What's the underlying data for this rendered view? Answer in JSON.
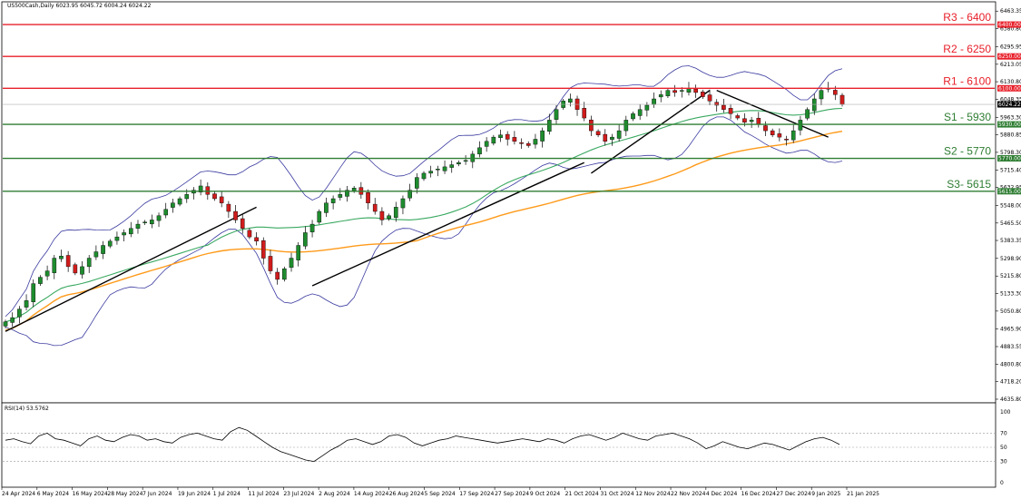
{
  "header": {
    "symbol_line": "US500Cash,Daily  6023.95 6045.72 6004.24 6024.22"
  },
  "colors": {
    "resistance": "#e8202a",
    "support": "#2e7d32",
    "candle_up": "#1e8c2e",
    "candle_down": "#d01c1c",
    "bollinger": "#3a3aa0",
    "ma_green": "#39a860",
    "ma_orange": "#ff9a1a",
    "trendline": "#000000",
    "rsi_line": "#000000"
  },
  "levels": [
    {
      "name": "R3",
      "label": "R3 - 6400",
      "price": 6400,
      "tag": "6400.00",
      "kind": "resistance"
    },
    {
      "name": "R2",
      "label": "R2 - 6250",
      "price": 6250,
      "tag": "6250.00",
      "kind": "resistance"
    },
    {
      "name": "R1",
      "label": "R1 - 6100",
      "price": 6100,
      "tag": "6100.00",
      "kind": "resistance"
    },
    {
      "name": "S1",
      "label": "S1 - 5930",
      "price": 5930,
      "tag": "5930.00",
      "kind": "support"
    },
    {
      "name": "S2",
      "label": "S2 - 5770",
      "price": 5770,
      "tag": "5770.00",
      "kind": "support"
    },
    {
      "name": "S3",
      "label": "S3- 5615",
      "price": 5615,
      "tag": "5615.00",
      "kind": "support"
    }
  ],
  "current_price_tag": "6024.22",
  "rsi": {
    "label": "RSI(14) 53.5762",
    "levels": [
      70,
      50,
      30
    ],
    "tick_labels": [
      "100",
      "70",
      "50",
      "30",
      "0"
    ]
  },
  "chart_data": {
    "type": "candlestick",
    "title": "US500Cash,Daily",
    "y_ticks": [
      "6463.35",
      "6380.80",
      "6295.95",
      "6213.05",
      "6130.80",
      "6048.35",
      "5963.30",
      "5880.85",
      "5798.30",
      "5715.40",
      "5632.95",
      "5548.00",
      "5465.50",
      "5383.35",
      "5298.90",
      "5215.80",
      "5133.30",
      "5050.80",
      "4965.90",
      "4883.55",
      "4800.80",
      "4718.20",
      "4635.80"
    ],
    "ylim": [
      4635.8,
      6490
    ],
    "x_labels": [
      "24 Apr 2024",
      "6 May 2024",
      "16 May 2024",
      "28 May 2024",
      "7 Jun 2024",
      "19 Jun 2024",
      "1 Jul 2024",
      "11 Jul 2024",
      "23 Jul 2024",
      "2 Aug 2024",
      "14 Aug 2024",
      "26 Aug 2024",
      "5 Sep 2024",
      "17 Sep 2024",
      "27 Sep 2024",
      "9 Oct 2024",
      "21 Oct 2024",
      "31 Oct 2024",
      "12 Nov 2024",
      "22 Nov 2024",
      "4 Dec 2024",
      "16 Dec 2024",
      "27 Dec 2024",
      "9 Jan 2025",
      "21 Jan 2025"
    ],
    "close_path": [
      5000,
      5020,
      5060,
      5100,
      5180,
      5210,
      5240,
      5300,
      5310,
      5260,
      5230,
      5260,
      5300,
      5330,
      5360,
      5380,
      5400,
      5420,
      5440,
      5460,
      5470,
      5480,
      5500,
      5530,
      5560,
      5580,
      5600,
      5620,
      5640,
      5600,
      5580,
      5560,
      5520,
      5480,
      5440,
      5400,
      5380,
      5300,
      5240,
      5200,
      5250,
      5300,
      5360,
      5420,
      5460,
      5520,
      5560,
      5580,
      5600,
      5620,
      5630,
      5600,
      5560,
      5520,
      5480,
      5500,
      5540,
      5580,
      5620,
      5680,
      5700,
      5710,
      5720,
      5730,
      5740,
      5750,
      5760,
      5790,
      5820,
      5850,
      5870,
      5880,
      5860,
      5850,
      5840,
      5830,
      5860,
      5900,
      5950,
      6000,
      6040,
      6050,
      6000,
      5960,
      5900,
      5880,
      5850,
      5870,
      5900,
      5950,
      5980,
      6000,
      6020,
      6050,
      6070,
      6090,
      6080,
      6090,
      6100,
      6080,
      6060,
      6040,
      6020,
      6000,
      5980,
      5960,
      5940,
      5950,
      5930,
      5900,
      5880,
      5870,
      5860,
      5900,
      5950,
      6000,
      6050,
      6090,
      6100,
      6070,
      6024
    ],
    "series": [
      {
        "name": "Price",
        "note": "daily candles"
      }
    ],
    "rsi_values": [
      60,
      62,
      58,
      55,
      66,
      70,
      62,
      60,
      56,
      52,
      62,
      66,
      60,
      58,
      64,
      68,
      66,
      60,
      62,
      58,
      56,
      64,
      68,
      70,
      66,
      62,
      60,
      72,
      78,
      74,
      66,
      58,
      50,
      44,
      40,
      36,
      32,
      30,
      38,
      46,
      52,
      60,
      62,
      58,
      54,
      58,
      66,
      68,
      64,
      56,
      52,
      56,
      60,
      62,
      66,
      64,
      62,
      60,
      58,
      56,
      58,
      60,
      62,
      60,
      58,
      62,
      60,
      56,
      62,
      66,
      68,
      64,
      60,
      64,
      70,
      66,
      62,
      60,
      66,
      68,
      70,
      66,
      62,
      56,
      48,
      52,
      58,
      54,
      50,
      48,
      52,
      56,
      54,
      50,
      46,
      52,
      58,
      62,
      64,
      60,
      54
    ]
  }
}
